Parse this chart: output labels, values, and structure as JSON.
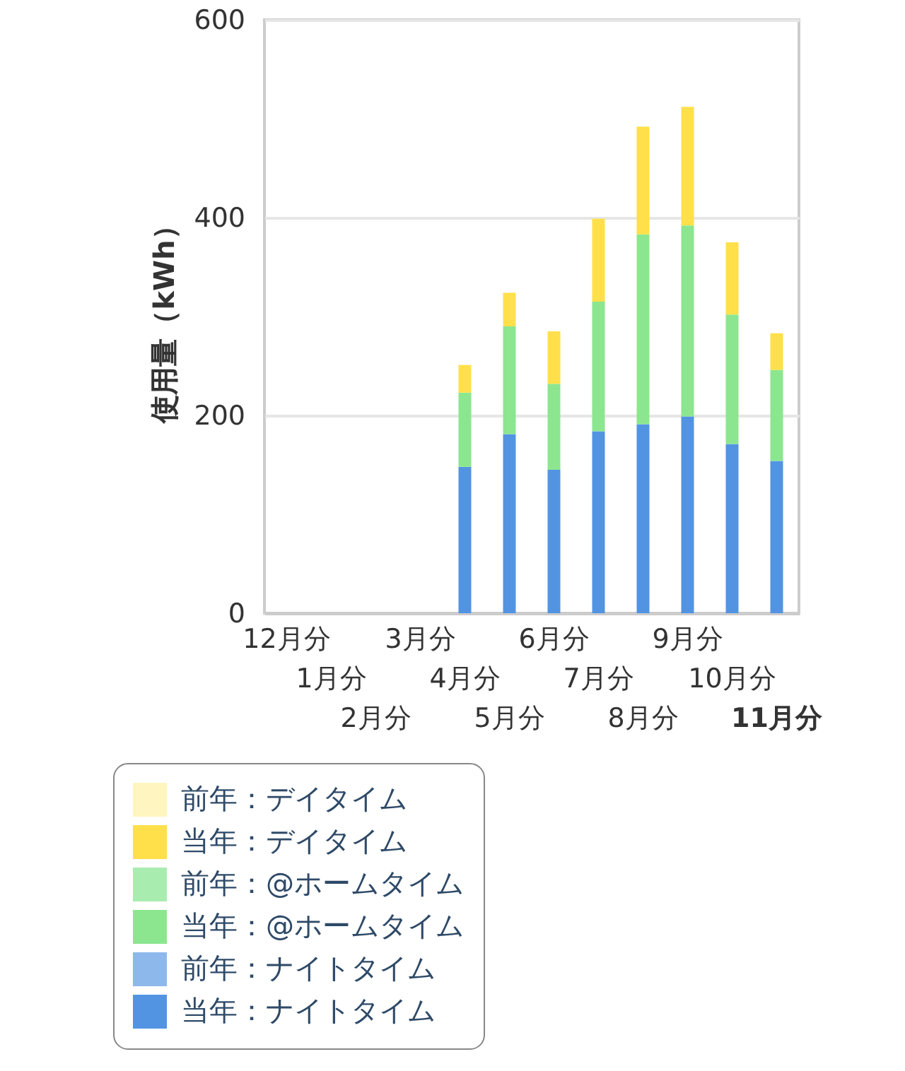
{
  "chart_data": {
    "type": "bar",
    "stacked": true,
    "ylabel": "使用量（kWh）",
    "categories": [
      "12月分",
      "1月分",
      "2月分",
      "3月分",
      "4月分",
      "5月分",
      "6月分",
      "7月分",
      "8月分",
      "9月分",
      "10月分",
      "11月分"
    ],
    "series": [
      {
        "name": "当年：ナイトタイム",
        "color": "#5294e2",
        "values": [
          null,
          null,
          null,
          null,
          148,
          181,
          145,
          184,
          191,
          199,
          171,
          154
        ]
      },
      {
        "name": "前年：ナイトタイム",
        "color": "#8db8ec",
        "values": [
          null,
          null,
          null,
          null,
          null,
          null,
          null,
          null,
          null,
          null,
          null,
          null
        ]
      },
      {
        "name": "当年：@ホームタイム",
        "color": "#8ce68f",
        "values": [
          null,
          null,
          null,
          null,
          75,
          109,
          87,
          131,
          192,
          193,
          131,
          92
        ]
      },
      {
        "name": "前年：@ホームタイム",
        "color": "#a9ecb0",
        "values": [
          null,
          null,
          null,
          null,
          null,
          null,
          null,
          null,
          null,
          null,
          null,
          null
        ]
      },
      {
        "name": "当年：デイタイム",
        "color": "#ffe04a",
        "values": [
          null,
          null,
          null,
          null,
          28,
          34,
          53,
          84,
          109,
          120,
          73,
          37
        ]
      },
      {
        "name": "前年：デイタイム",
        "color": "#fff5c0",
        "values": [
          null,
          null,
          null,
          null,
          null,
          null,
          null,
          null,
          null,
          null,
          null,
          null
        ]
      }
    ],
    "ylim": [
      0,
      600
    ],
    "yticks": [
      0,
      200,
      400,
      600
    ],
    "grid": "y",
    "legend": "bottom"
  }
}
